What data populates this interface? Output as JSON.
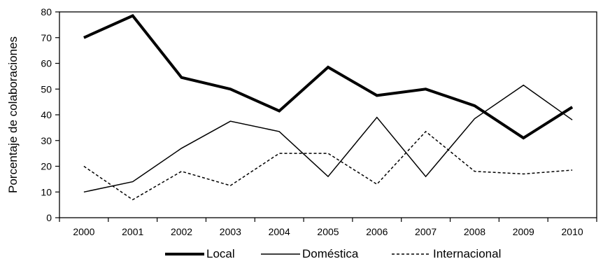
{
  "chart_data": {
    "type": "line",
    "title": "",
    "xlabel": "",
    "ylabel": "Porcentaje de colaboraciones",
    "categories": [
      "2000",
      "2001",
      "2002",
      "2003",
      "2004",
      "2005",
      "2006",
      "2007",
      "2008",
      "2009",
      "2010"
    ],
    "ylim": [
      0,
      80
    ],
    "yticks": [
      0,
      10,
      20,
      30,
      40,
      50,
      60,
      70,
      80
    ],
    "grid": false,
    "legend_position": "bottom",
    "series": [
      {
        "name": "Local",
        "style": "thick-solid",
        "color": "#000000",
        "values": [
          70,
          78.5,
          54.5,
          50,
          41.5,
          58.5,
          47.5,
          50,
          43.5,
          31,
          43
        ]
      },
      {
        "name": "Doméstica",
        "style": "thin-solid",
        "color": "#000000",
        "values": [
          10,
          14,
          27,
          37.5,
          33.5,
          16,
          39,
          16,
          38.5,
          51.5,
          38
        ]
      },
      {
        "name": "Internacional",
        "style": "dashed",
        "color": "#000000",
        "values": [
          20,
          7,
          18,
          12.5,
          25,
          25,
          13,
          33.5,
          18,
          17,
          18.5
        ]
      }
    ]
  }
}
